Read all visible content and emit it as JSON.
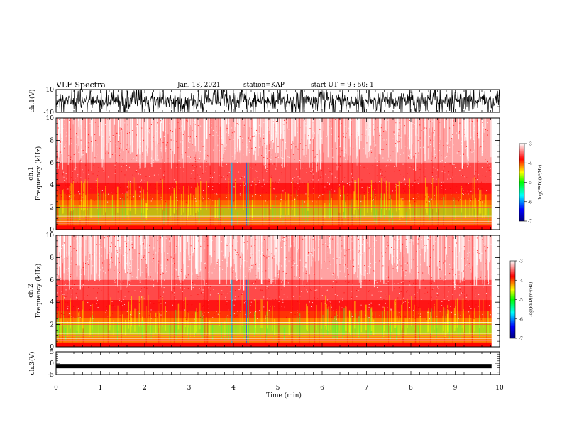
{
  "header": {
    "title": "VLF Spectra",
    "date": "Jan. 18, 2021",
    "station": "station=KAP",
    "start": "start UT =  9 : 50: 1"
  },
  "chart_data": [
    {
      "type": "line",
      "panel": "ch1-waveform",
      "ylabel": "ch.1(V)",
      "ylim": [
        -10,
        10
      ],
      "yticks": [
        10,
        -10
      ],
      "xlim": [
        0,
        10
      ],
      "description_series": "dense waveform spanning the full range"
    },
    {
      "type": "heatmap",
      "panel": "ch1-spectrogram",
      "ylabel_line1": "ch.1",
      "ylabel_line2": "Frequency (kHz)",
      "ylim": [
        0,
        10
      ],
      "yticks": [
        0,
        2,
        4,
        6,
        8,
        10
      ],
      "xlim": [
        0,
        10
      ],
      "data_end_min": 9.82
    },
    {
      "type": "heatmap",
      "panel": "ch2-spectrogram",
      "ylabel_line1": "ch.2",
      "ylabel_line2": "Frequency (kHz)",
      "ylim": [
        0,
        10
      ],
      "yticks": [
        0,
        2,
        4,
        6,
        8,
        10
      ],
      "xlim": [
        0,
        10
      ],
      "data_end_min": 9.82
    },
    {
      "type": "line",
      "panel": "ch3-waveform",
      "ylabel": "ch.3(V)",
      "ylim": [
        -5,
        5
      ],
      "yticks": [
        5,
        0,
        -5
      ],
      "xlim": [
        0,
        10
      ],
      "series_level": -1.3,
      "data_end_min": 9.82
    }
  ],
  "xaxis": {
    "label": "Time (min)",
    "ticks": [
      0,
      1,
      2,
      3,
      4,
      5,
      6,
      7,
      8,
      9,
      10
    ]
  },
  "colorbar": {
    "label": "log(PSD)(V²/Hz)",
    "ticks": [
      -3,
      -4,
      -5,
      -6,
      -7
    ],
    "range": [
      -7,
      -3
    ],
    "colors": [
      "#000080",
      "#0000ff",
      "#00ffff",
      "#00ff00",
      "#ffff00",
      "#ff0000",
      "#ffffff"
    ]
  }
}
